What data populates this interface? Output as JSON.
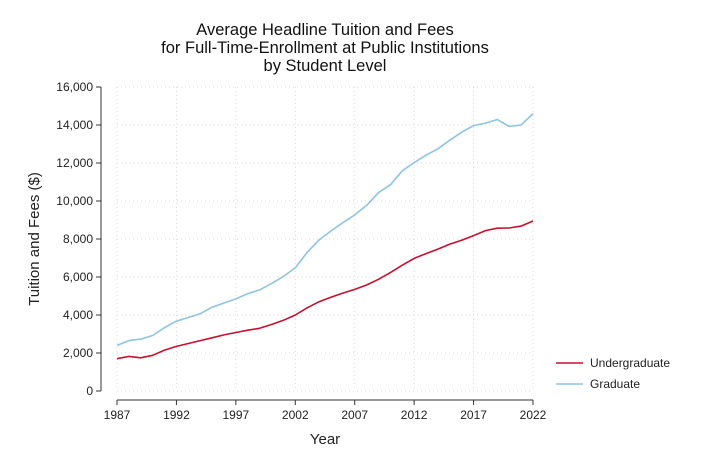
{
  "chart_data": {
    "type": "line",
    "title": [
      "Average Headline Tuition and Fees",
      "for Full-Time-Enrollment at Public Institutions",
      "by Student Level"
    ],
    "xlabel": "Year",
    "ylabel": "Tuition and Fees ($)",
    "xlim": [
      1987,
      2022
    ],
    "ylim": [
      0,
      16000
    ],
    "x_ticks": [
      1987,
      1992,
      1997,
      2002,
      2007,
      2012,
      2017,
      2022
    ],
    "y_ticks": [
      0,
      2000,
      4000,
      6000,
      8000,
      10000,
      12000,
      14000,
      16000
    ],
    "y_tick_labels": [
      "0",
      "2,000",
      "4,000",
      "6,000",
      "8,000",
      "10,000",
      "12,000",
      "14,000",
      "16,000"
    ],
    "grid": true,
    "legend_position": "bottom-right",
    "x": [
      1987,
      1988,
      1989,
      1990,
      1991,
      1992,
      1993,
      1994,
      1995,
      1996,
      1997,
      1998,
      1999,
      2000,
      2001,
      2002,
      2003,
      2004,
      2005,
      2006,
      2007,
      2008,
      2009,
      2010,
      2011,
      2012,
      2013,
      2014,
      2015,
      2016,
      2017,
      2018,
      2019,
      2020,
      2021,
      2022
    ],
    "series": [
      {
        "name": "Undergraduate",
        "color": "#c8102e",
        "values": [
          1700,
          1820,
          1750,
          1880,
          2150,
          2350,
          2500,
          2650,
          2800,
          2950,
          3080,
          3200,
          3300,
          3500,
          3720,
          4000,
          4380,
          4700,
          4930,
          5150,
          5350,
          5580,
          5880,
          6230,
          6620,
          6980,
          7230,
          7470,
          7730,
          7930,
          8180,
          8440,
          8570,
          8580,
          8680,
          8950
        ]
      },
      {
        "name": "Graduate",
        "color": "#8ec4e3",
        "values": [
          2400,
          2650,
          2730,
          2920,
          3330,
          3680,
          3870,
          4070,
          4410,
          4630,
          4850,
          5120,
          5320,
          5650,
          6030,
          6480,
          7300,
          7950,
          8420,
          8860,
          9270,
          9770,
          10440,
          10850,
          11590,
          12020,
          12410,
          12750,
          13200,
          13620,
          13970,
          14100,
          14290,
          13920,
          14000,
          14600
        ]
      }
    ]
  }
}
